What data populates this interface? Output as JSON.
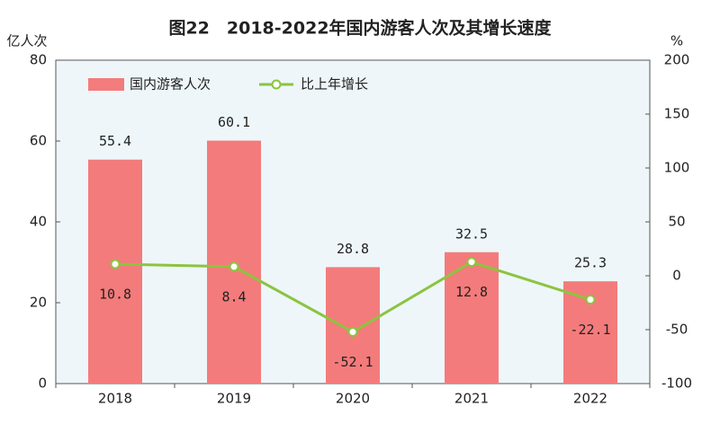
{
  "chart_data": {
    "type": "bar",
    "title": "图22　2018-2022年国内游客人次及其增长速度",
    "y_label": "亿人次",
    "y2_label": "%",
    "categories": [
      "2018",
      "2019",
      "2020",
      "2021",
      "2022"
    ],
    "series": [
      {
        "name": "国内游客人次",
        "type": "bar",
        "color": "#f47b7b",
        "values": [
          55.4,
          60.1,
          28.8,
          32.5,
          25.3
        ]
      },
      {
        "name": "比上年增长",
        "type": "line",
        "axis": "y2",
        "color": "#8cc43f",
        "values": [
          10.8,
          8.4,
          -52.1,
          12.8,
          -22.1
        ]
      }
    ],
    "ylim": [
      0,
      80
    ],
    "yticks": [
      0,
      20,
      40,
      60,
      80
    ],
    "y2lim": [
      -100,
      200
    ],
    "y2ticks": [
      -100,
      -50,
      0,
      50,
      100,
      150,
      200
    ],
    "grid": false,
    "legend": "top-left"
  }
}
